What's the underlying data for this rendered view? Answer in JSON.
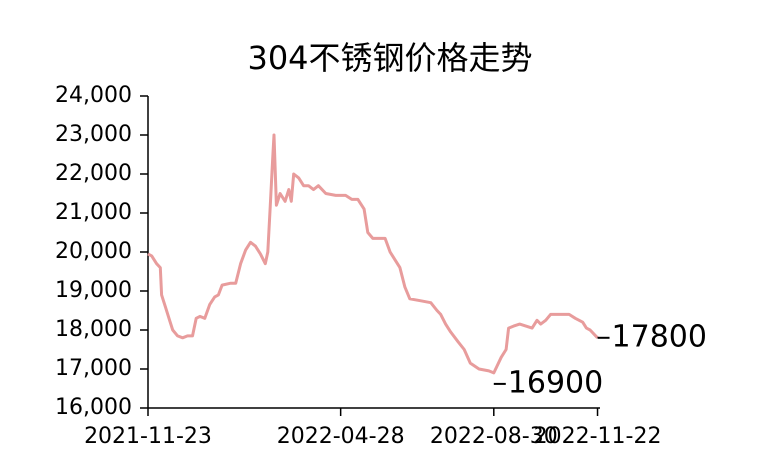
{
  "chart_data": {
    "type": "line",
    "title": "304不锈钢价格走势",
    "x": [
      "2021-11-23",
      "2021-11-26",
      "2021-11-30",
      "2021-12-03",
      "2021-12-04",
      "2021-12-07",
      "2021-12-11",
      "2021-12-13",
      "2021-12-17",
      "2021-12-21",
      "2021-12-25",
      "2021-12-29",
      "2022-01-01",
      "2022-01-04",
      "2022-01-08",
      "2022-01-12",
      "2022-01-16",
      "2022-01-19",
      "2022-01-22",
      "2022-01-29",
      "2022-02-02",
      "2022-02-06",
      "2022-02-10",
      "2022-02-14",
      "2022-02-18",
      "2022-02-22",
      "2022-02-26",
      "2022-02-28",
      "2022-03-02",
      "2022-03-04",
      "2022-03-05",
      "2022-03-07",
      "2022-03-10",
      "2022-03-14",
      "2022-03-17",
      "2022-03-19",
      "2022-03-21",
      "2022-03-25",
      "2022-03-29",
      "2022-04-02",
      "2022-04-06",
      "2022-04-10",
      "2022-04-16",
      "2022-04-24",
      "2022-05-02",
      "2022-05-07",
      "2022-05-12",
      "2022-05-17",
      "2022-05-20",
      "2022-05-24",
      "2022-06-03",
      "2022-06-07",
      "2022-06-11",
      "2022-06-15",
      "2022-06-19",
      "2022-06-23",
      "2022-07-02",
      "2022-07-10",
      "2022-07-15",
      "2022-07-18",
      "2022-07-22",
      "2022-07-26",
      "2022-08-01",
      "2022-08-06",
      "2022-08-11",
      "2022-08-18",
      "2022-08-26",
      "2022-08-30",
      "2022-09-02",
      "2022-09-05",
      "2022-09-09",
      "2022-09-11",
      "2022-09-15",
      "2022-09-20",
      "2022-09-25",
      "2022-09-30",
      "2022-10-04",
      "2022-10-07",
      "2022-10-11",
      "2022-10-15",
      "2022-10-23",
      "2022-10-30",
      "2022-11-04",
      "2022-11-10",
      "2022-11-13",
      "2022-11-16",
      "2022-11-22"
    ],
    "series": [
      {
        "name": "304",
        "color": "#e89c9c",
        "values": [
          19950,
          19900,
          19700,
          19600,
          18900,
          18600,
          18200,
          18000,
          17850,
          17800,
          17850,
          17850,
          18300,
          18350,
          18300,
          18650,
          18850,
          18900,
          19150,
          19200,
          19200,
          19700,
          20050,
          20250,
          20150,
          19950,
          19700,
          20000,
          21200,
          22400,
          23000,
          21200,
          21500,
          21300,
          21600,
          21300,
          22000,
          21900,
          21700,
          21700,
          21600,
          21700,
          21500,
          21450,
          21450,
          21350,
          21350,
          21100,
          20500,
          20350,
          20350,
          20000,
          19800,
          19600,
          19100,
          18800,
          18750,
          18700,
          18500,
          18400,
          18150,
          17950,
          17700,
          17500,
          17150,
          17000,
          16950,
          16900,
          17100,
          17300,
          17500,
          18050,
          18100,
          18150,
          18100,
          18050,
          18250,
          18150,
          18250,
          18400,
          18400,
          18400,
          18300,
          18200,
          18050,
          18000,
          17800
        ]
      }
    ],
    "xlim": [
      "2021-11-23",
      "2022-11-24"
    ],
    "xticks": [
      "2021-11-23",
      "2022-04-28",
      "2022-08-30",
      "2022-11-22"
    ],
    "ylim": [
      16000,
      24000
    ],
    "yticks": [
      {
        "value": 16000,
        "label": "16,000"
      },
      {
        "value": 17000,
        "label": "17,000"
      },
      {
        "value": 18000,
        "label": "18,000"
      },
      {
        "value": 19000,
        "label": "19,000"
      },
      {
        "value": 20000,
        "label": "20,000"
      },
      {
        "value": 21000,
        "label": "21,000"
      },
      {
        "value": 22000,
        "label": "22,000"
      },
      {
        "value": 23000,
        "label": "23,000"
      },
      {
        "value": 24000,
        "label": "24,000"
      }
    ]
  }
}
